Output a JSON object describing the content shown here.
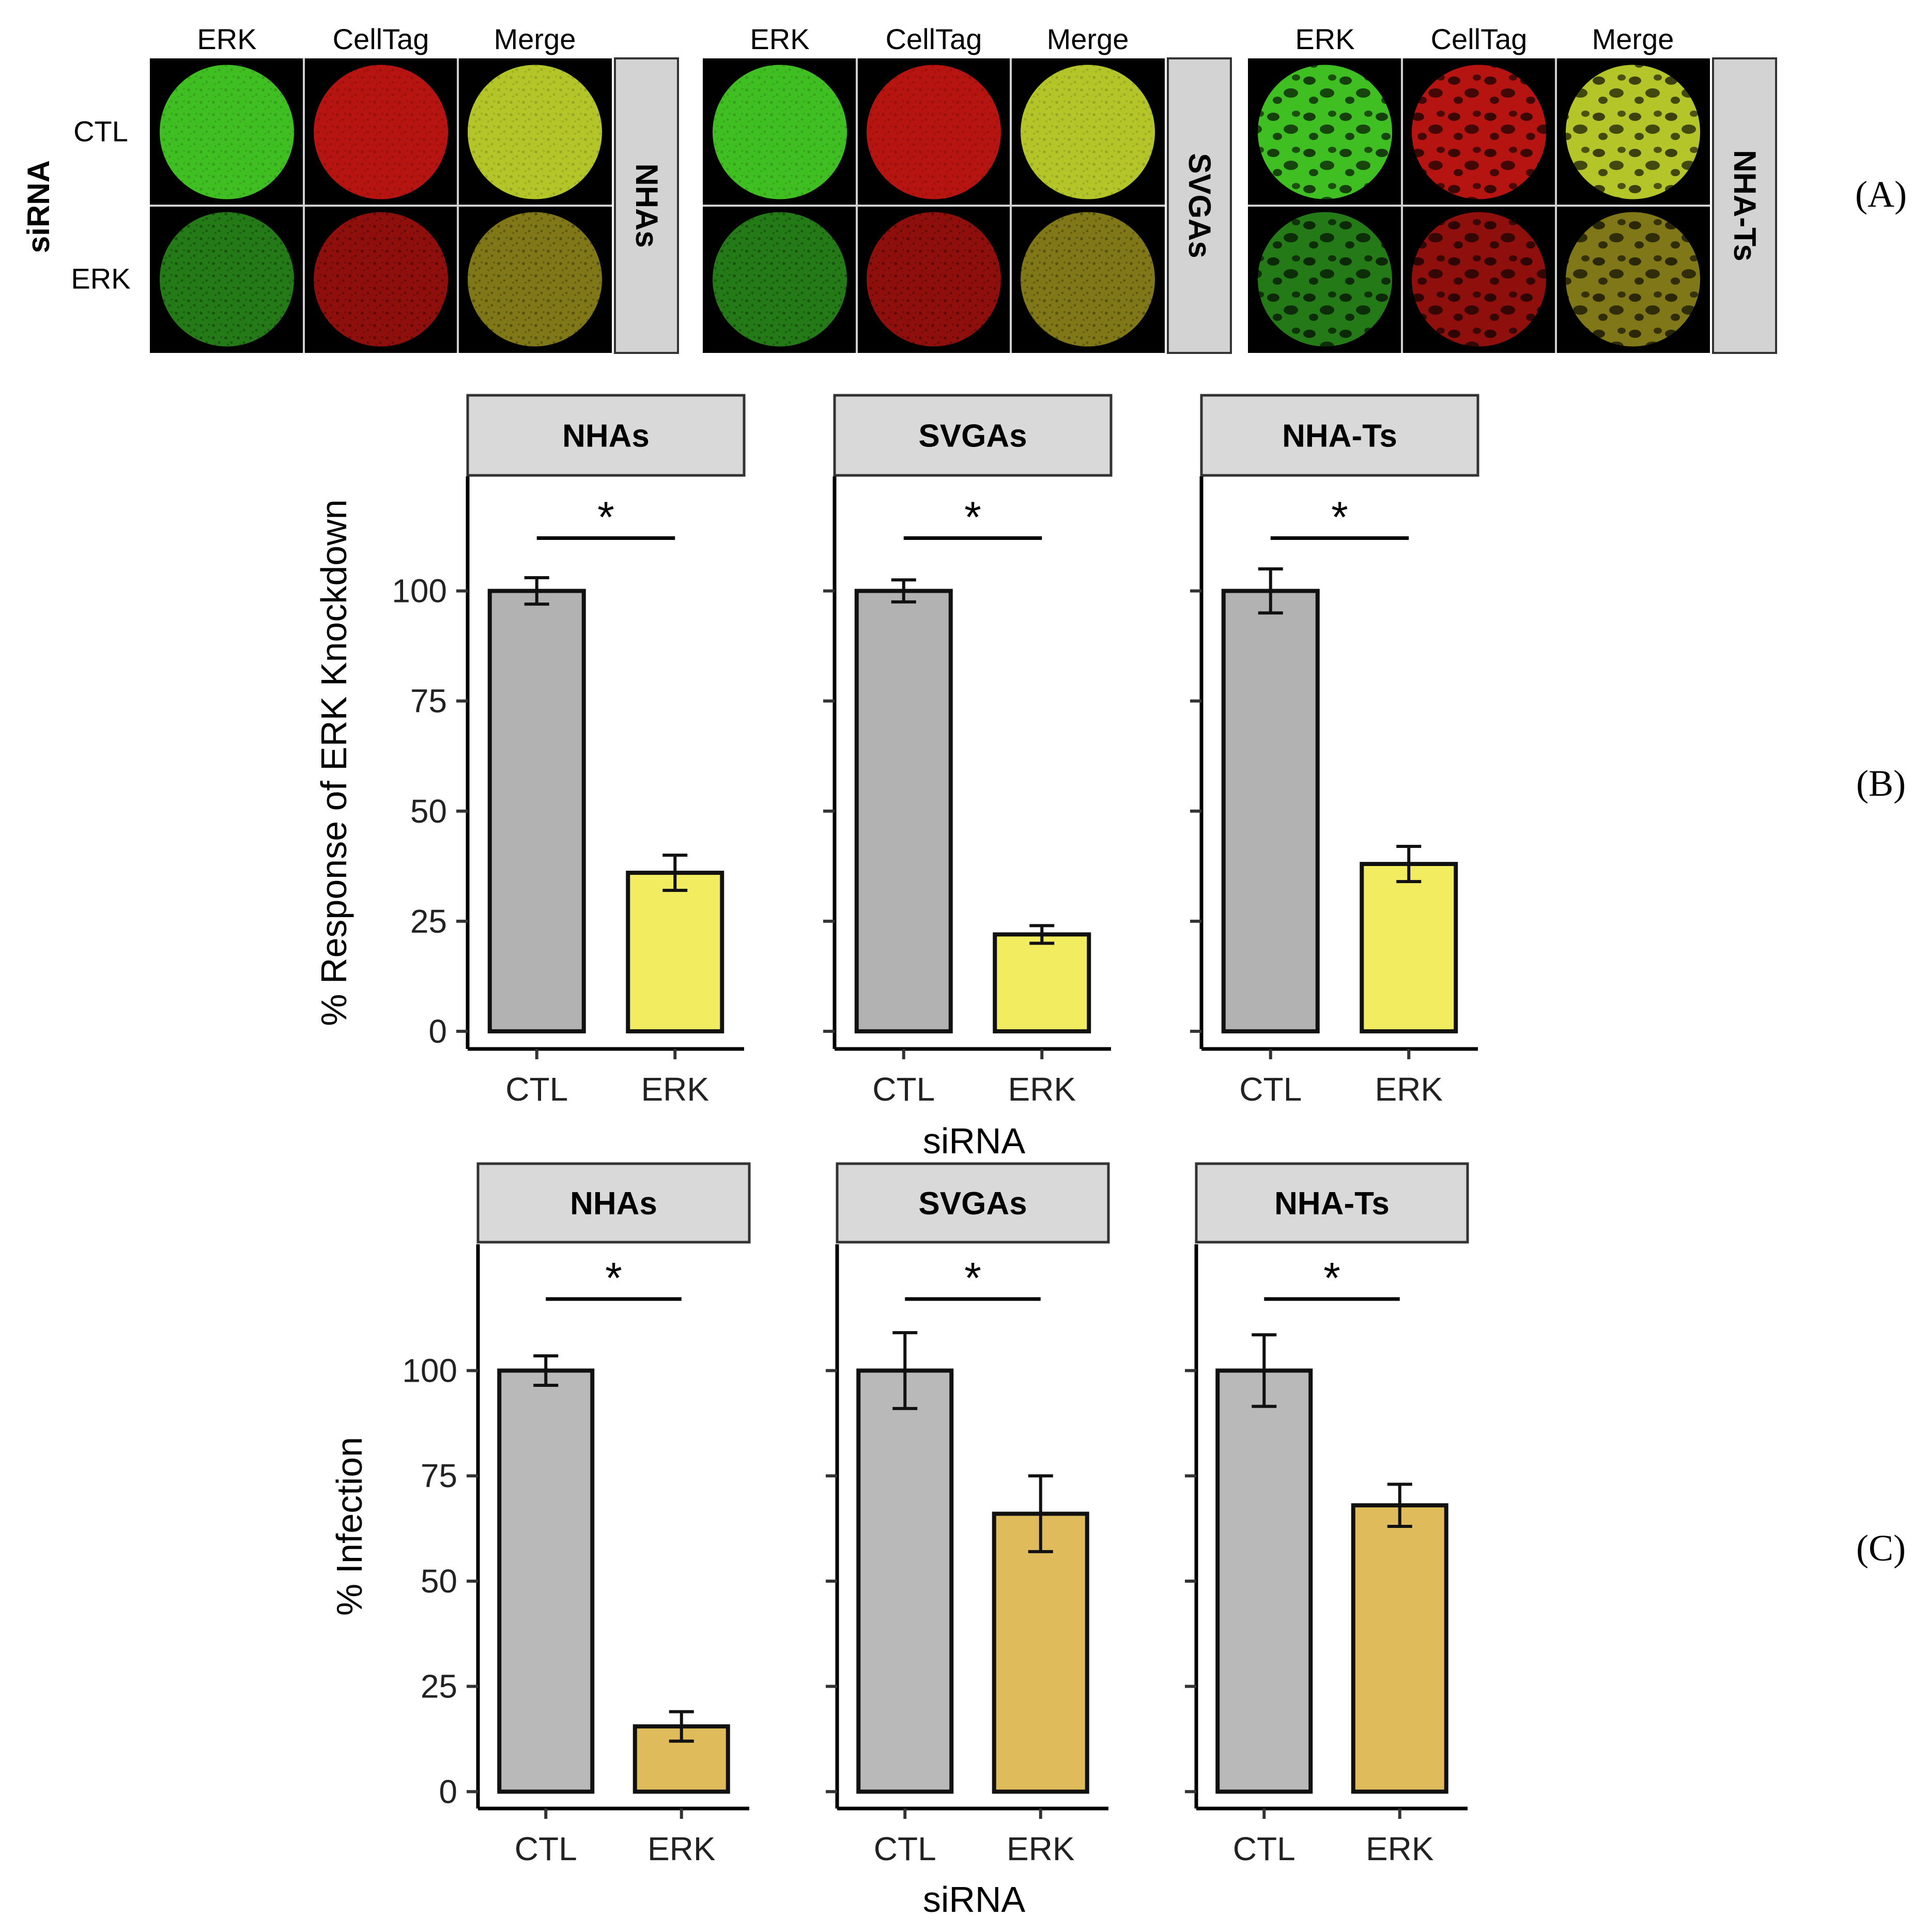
{
  "figure": {
    "panel_labels": [
      "(A)",
      "(B)",
      "(C)"
    ]
  },
  "panel_a": {
    "row_axis_title": "siRNA",
    "row_labels": [
      "CTL",
      "ERK"
    ],
    "column_labels": [
      "ERK",
      "CellTag",
      "Merge"
    ],
    "groups": [
      {
        "strip": "NHAs",
        "pattern": "fine"
      },
      {
        "strip": "SVGAs",
        "pattern": "fine"
      },
      {
        "strip": "NHA-Ts",
        "pattern": "blotchy"
      }
    ],
    "colors": {
      "ERK_CTL": "#3fbf22",
      "ERK_KD": "#247a16",
      "CellTag_CTL": "#b51410",
      "CellTag_KD": "#8e0f0c",
      "Merge_CTL": "#b4c52a",
      "Merge_KD": "#807818"
    }
  },
  "chart_data": [
    {
      "type": "bar",
      "panel": "B",
      "facets": [
        "NHAs",
        "SVGAs",
        "NHA-Ts"
      ],
      "categories": [
        "CTL",
        "ERK"
      ],
      "values": [
        [
          100,
          36
        ],
        [
          100,
          22
        ],
        [
          100,
          38
        ]
      ],
      "errors": [
        [
          3,
          4
        ],
        [
          2.5,
          2
        ],
        [
          5,
          4
        ]
      ],
      "significance": [
        "*",
        "*",
        "*"
      ],
      "ylabel": "% Response of ERK Knockdown",
      "xlabel": "siRNA",
      "yticks": [
        0,
        25,
        50,
        75,
        100
      ],
      "ylim": [
        -4,
        126
      ],
      "colors": {
        "CTL": "#b2b2b2",
        "ERK": "#f2ed60"
      }
    },
    {
      "type": "bar",
      "panel": "C",
      "facets": [
        "NHAs",
        "SVGAs",
        "NHA-Ts"
      ],
      "categories": [
        "CTL",
        "ERK"
      ],
      "values": [
        [
          100,
          15.5
        ],
        [
          100,
          66
        ],
        [
          100,
          68
        ]
      ],
      "errors": [
        [
          3.5,
          3.5
        ],
        [
          9,
          9
        ],
        [
          8.5,
          5
        ]
      ],
      "significance": [
        "*",
        "*",
        "*"
      ],
      "ylabel": "% Infection",
      "xlabel": "siRNA",
      "yticks": [
        0,
        25,
        50,
        75,
        100
      ],
      "ylim": [
        -4,
        130
      ],
      "colors": {
        "CTL": "#b9b9b9",
        "ERK": "#dfbb5c"
      }
    }
  ]
}
